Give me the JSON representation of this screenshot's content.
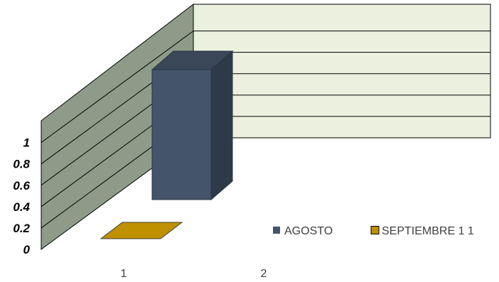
{
  "colors": {
    "back_wall": "#EBF1DE",
    "side_wall": "#8E9B88",
    "grid_line": "#000000",
    "agosto": "#44546A",
    "agosto_side": "#2E3A4A",
    "agosto_top": "#3A4759",
    "septiembre": "#BF9000",
    "septiembre_border": "#3F3F3F"
  },
  "chart_data": {
    "type": "bar",
    "style": "3d-column",
    "title": "",
    "xlabel": "",
    "ylabel": "",
    "categories": [
      "1",
      "2"
    ],
    "y_ticks": [
      "0",
      "0.2",
      "0.4",
      "0.6",
      "0.8",
      "1"
    ],
    "ylim": [
      0,
      1
    ],
    "grid": true,
    "legend_position": "right",
    "series": [
      {
        "name": "AGOSTO",
        "values": [
          1,
          0
        ],
        "color": "#44546A"
      },
      {
        "name": "SEPTIEMBRE 1 1",
        "values": [
          0,
          0
        ],
        "color": "#BF9000"
      }
    ]
  }
}
